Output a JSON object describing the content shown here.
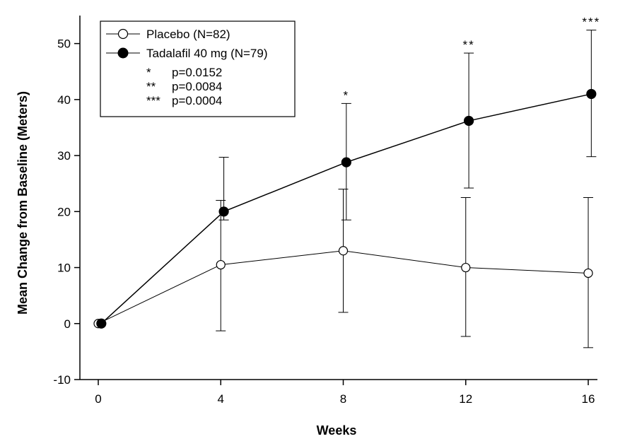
{
  "chart_data": {
    "type": "line",
    "title": "",
    "xlabel": "Weeks",
    "ylabel": "Mean Change from Baseline (Meters)",
    "x": [
      0,
      4,
      8,
      12,
      16
    ],
    "xticks": [
      "0",
      "4",
      "8",
      "12",
      "16"
    ],
    "yticks": [
      "-10",
      "0",
      "10",
      "20",
      "30",
      "40",
      "50"
    ],
    "xlim": [
      -0.6,
      16.3
    ],
    "ylim": [
      -10,
      55
    ],
    "series": [
      {
        "name": "Placebo (N=82)",
        "marker": "open-circle",
        "x": [
          0,
          4,
          8,
          12,
          16
        ],
        "values": [
          0,
          10.5,
          13,
          10,
          9
        ],
        "error_upper": [
          0,
          22,
          24,
          22.5,
          22.5
        ],
        "error_lower": [
          0,
          -1.3,
          2,
          -2.3,
          -4.3
        ]
      },
      {
        "name": "Tadalafil 40 mg (N=79)",
        "marker": "filled-circle",
        "x": [
          0.1,
          4.1,
          8.1,
          12.1,
          16.1
        ],
        "values": [
          0,
          20,
          28.8,
          36.2,
          41
        ],
        "error_upper": [
          0,
          29.7,
          39.3,
          48.3,
          52.4
        ],
        "error_lower": [
          0,
          18.5,
          18.5,
          24.2,
          29.8
        ]
      }
    ],
    "significance": [
      {
        "week": 8,
        "marker": "*"
      },
      {
        "week": 12,
        "marker": "**"
      },
      {
        "week": 16,
        "marker": "***"
      }
    ],
    "legend": {
      "position": "top-left",
      "notes": [
        {
          "stars": "*",
          "p": "p=0.0152"
        },
        {
          "stars": "**",
          "p": "p=0.0084"
        },
        {
          "stars": "***",
          "p": "p=0.0004"
        }
      ]
    },
    "grid": false
  }
}
